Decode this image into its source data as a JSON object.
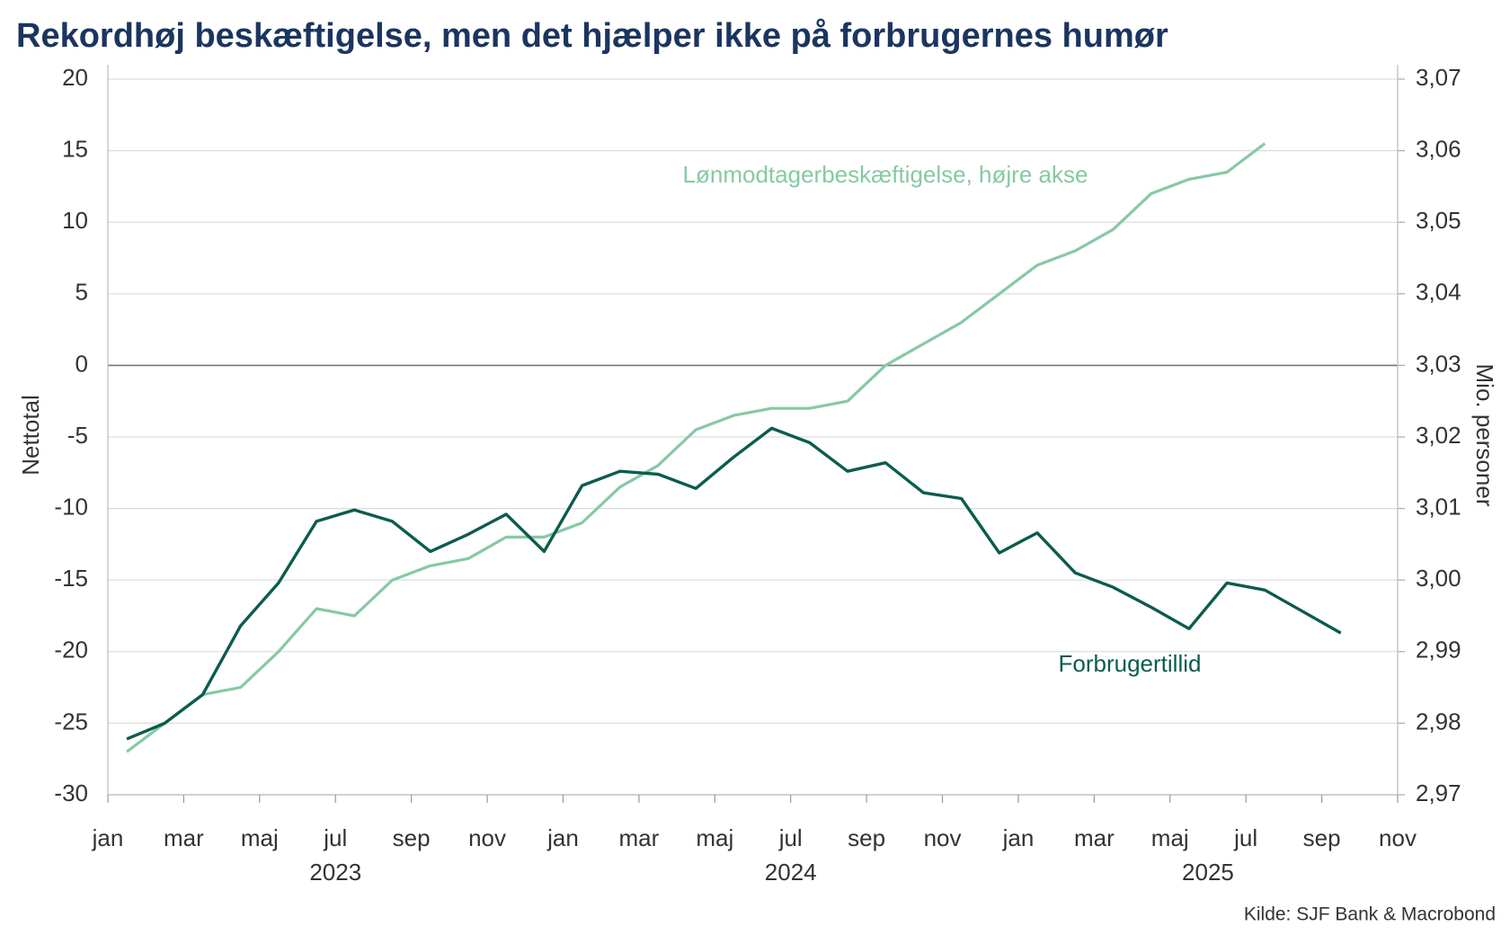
{
  "chart_data": {
    "type": "line",
    "title": "Rekordhøj beskæftigelse, men det hjælper ikke på forbrugernes humør",
    "y_label": "Nettotal",
    "y2_label": "Mio. personer",
    "source": "Kilde: SJF Bank & Macrobond",
    "x": [
      "2023-01",
      "2023-02",
      "2023-03",
      "2023-04",
      "2023-05",
      "2023-06",
      "2023-07",
      "2023-08",
      "2023-09",
      "2023-10",
      "2023-11",
      "2023-12",
      "2024-01",
      "2024-02",
      "2024-03",
      "2024-04",
      "2024-05",
      "2024-06",
      "2024-07",
      "2024-08",
      "2024-09",
      "2024-10",
      "2024-11",
      "2024-12",
      "2025-01",
      "2025-02",
      "2025-03",
      "2025-04",
      "2025-05",
      "2025-06",
      "2025-07",
      "2025-08",
      "2025-09"
    ],
    "xlim": [
      "2023-01",
      "2025-11"
    ],
    "xticks": [
      {
        "value": "2023-01",
        "label": "jan"
      },
      {
        "value": "2023-03",
        "label": "mar"
      },
      {
        "value": "2023-05",
        "label": "maj"
      },
      {
        "value": "2023-07",
        "label": "jul"
      },
      {
        "value": "2023-09",
        "label": "sep"
      },
      {
        "value": "2023-11",
        "label": "nov"
      },
      {
        "value": "2024-01",
        "label": "jan"
      },
      {
        "value": "2024-03",
        "label": "mar"
      },
      {
        "value": "2024-05",
        "label": "maj"
      },
      {
        "value": "2024-07",
        "label": "jul"
      },
      {
        "value": "2024-09",
        "label": "sep"
      },
      {
        "value": "2024-11",
        "label": "nov"
      },
      {
        "value": "2025-01",
        "label": "jan"
      },
      {
        "value": "2025-03",
        "label": "mar"
      },
      {
        "value": "2025-05",
        "label": "maj"
      },
      {
        "value": "2025-07",
        "label": "jul"
      },
      {
        "value": "2025-09",
        "label": "sep"
      },
      {
        "value": "2025-11",
        "label": "nov"
      }
    ],
    "year_labels": [
      {
        "value": "2023-07",
        "label": "2023"
      },
      {
        "value": "2024-07",
        "label": "2024"
      },
      {
        "value": "2025-06",
        "label": "2025"
      }
    ],
    "ylim": [
      -30,
      20
    ],
    "yticks": [
      -30,
      -25,
      -20,
      -15,
      -10,
      -5,
      0,
      5,
      10,
      15,
      20
    ],
    "y2lim": [
      2.97,
      3.07
    ],
    "y2ticks": [
      {
        "value": 2.97,
        "label": "2,97"
      },
      {
        "value": 2.98,
        "label": "2,98"
      },
      {
        "value": 2.99,
        "label": "2,99"
      },
      {
        "value": 3.0,
        "label": "3,00"
      },
      {
        "value": 3.01,
        "label": "3,01"
      },
      {
        "value": 3.02,
        "label": "3,02"
      },
      {
        "value": 3.03,
        "label": "3,03"
      },
      {
        "value": 3.04,
        "label": "3,04"
      },
      {
        "value": 3.05,
        "label": "3,05"
      },
      {
        "value": 3.06,
        "label": "3,06"
      },
      {
        "value": 3.07,
        "label": "3,07"
      }
    ],
    "grid": true,
    "series": [
      {
        "name": "Lønmodtagerbeskæftigelse, højre akse",
        "color": "#86c9a5",
        "axis": "y2",
        "values": [
          2.976,
          2.98,
          2.984,
          2.985,
          2.99,
          2.996,
          2.995,
          3.0,
          3.002,
          3.003,
          3.006,
          3.006,
          3.008,
          3.013,
          3.016,
          3.021,
          3.023,
          3.024,
          3.024,
          3.025,
          3.03,
          3.033,
          3.036,
          3.04,
          3.044,
          3.046,
          3.049,
          3.054,
          3.056,
          3.057,
          3.061,
          null,
          null
        ]
      },
      {
        "name": "Forbrugertillid",
        "color": "#0b5c4e",
        "values": [
          -26.1,
          -25.0,
          -23.0,
          -18.2,
          -15.2,
          -10.9,
          -10.1,
          -10.9,
          -13.0,
          -11.8,
          -10.4,
          -13.0,
          -8.4,
          -7.4,
          -7.6,
          -8.6,
          -6.4,
          -4.4,
          -5.4,
          -7.4,
          -6.8,
          -8.9,
          -9.3,
          -13.1,
          -11.7,
          -14.5,
          -15.5,
          -16.9,
          -18.4,
          -15.2,
          -15.7,
          -17.2,
          -18.7
        ]
      }
    ]
  }
}
